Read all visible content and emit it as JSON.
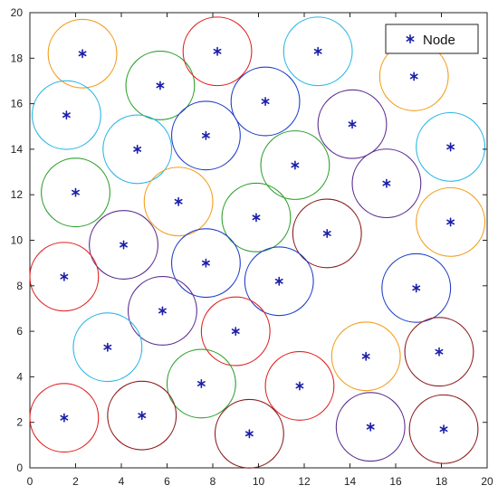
{
  "chart_data": {
    "type": "scatter",
    "title": "",
    "xlabel": "",
    "ylabel": "",
    "xlim": [
      0,
      20
    ],
    "ylim": [
      0,
      20
    ],
    "xticks": [
      "0",
      "2",
      "4",
      "6",
      "8",
      "10",
      "12",
      "14",
      "16",
      "18",
      "20"
    ],
    "yticks": [
      "0",
      "2",
      "4",
      "6",
      "8",
      "10",
      "12",
      "14",
      "16",
      "18",
      "20"
    ],
    "grid": false,
    "legend": {
      "position": "top-right",
      "entries": [
        {
          "label": "Node",
          "marker": "asterisk",
          "color": "#1a1fa8"
        }
      ]
    },
    "marker_color": "#1a1fa8",
    "circle_radius": 1.5,
    "series": [
      {
        "name": "Node",
        "points": [
          {
            "x": 2.3,
            "y": 18.2,
            "circle_color": "#f39c1a"
          },
          {
            "x": 5.7,
            "y": 16.8,
            "circle_color": "#2ca02c"
          },
          {
            "x": 8.2,
            "y": 18.3,
            "circle_color": "#e02020"
          },
          {
            "x": 12.6,
            "y": 18.3,
            "circle_color": "#29b6e6"
          },
          {
            "x": 16.8,
            "y": 17.2,
            "circle_color": "#f39c1a"
          },
          {
            "x": 1.6,
            "y": 15.5,
            "circle_color": "#29b6e6"
          },
          {
            "x": 4.7,
            "y": 14.0,
            "circle_color": "#29b6e6"
          },
          {
            "x": 7.7,
            "y": 14.6,
            "circle_color": "#1f3ec8"
          },
          {
            "x": 10.3,
            "y": 16.1,
            "circle_color": "#1f3ec8"
          },
          {
            "x": 14.1,
            "y": 15.1,
            "circle_color": "#5b2d8e"
          },
          {
            "x": 18.4,
            "y": 14.1,
            "circle_color": "#29b6e6"
          },
          {
            "x": 2.0,
            "y": 12.1,
            "circle_color": "#2ca02c"
          },
          {
            "x": 6.5,
            "y": 11.7,
            "circle_color": "#f39c1a"
          },
          {
            "x": 11.6,
            "y": 13.3,
            "circle_color": "#2ca02c"
          },
          {
            "x": 15.6,
            "y": 12.5,
            "circle_color": "#5b2d8e"
          },
          {
            "x": 9.9,
            "y": 11.0,
            "circle_color": "#2ca02c"
          },
          {
            "x": 4.1,
            "y": 9.8,
            "circle_color": "#5b2d8e"
          },
          {
            "x": 13.0,
            "y": 10.3,
            "circle_color": "#8b1a1a"
          },
          {
            "x": 18.4,
            "y": 10.8,
            "circle_color": "#f39c1a"
          },
          {
            "x": 1.5,
            "y": 8.4,
            "circle_color": "#e02020"
          },
          {
            "x": 7.7,
            "y": 9.0,
            "circle_color": "#1f3ec8"
          },
          {
            "x": 10.9,
            "y": 8.2,
            "circle_color": "#1f3ec8"
          },
          {
            "x": 16.9,
            "y": 7.9,
            "circle_color": "#1f3ec8"
          },
          {
            "x": 5.8,
            "y": 6.9,
            "circle_color": "#5b2d8e"
          },
          {
            "x": 9.0,
            "y": 6.0,
            "circle_color": "#e02020"
          },
          {
            "x": 3.4,
            "y": 5.3,
            "circle_color": "#29b6e6"
          },
          {
            "x": 14.7,
            "y": 4.9,
            "circle_color": "#f39c1a"
          },
          {
            "x": 17.9,
            "y": 5.1,
            "circle_color": "#8b1a1a"
          },
          {
            "x": 7.5,
            "y": 3.7,
            "circle_color": "#2ca02c"
          },
          {
            "x": 11.8,
            "y": 3.6,
            "circle_color": "#e02020"
          },
          {
            "x": 1.5,
            "y": 2.2,
            "circle_color": "#e02020"
          },
          {
            "x": 4.9,
            "y": 2.3,
            "circle_color": "#8b1a1a"
          },
          {
            "x": 9.6,
            "y": 1.5,
            "circle_color": "#8b1a1a"
          },
          {
            "x": 14.9,
            "y": 1.8,
            "circle_color": "#5b2d8e"
          },
          {
            "x": 18.1,
            "y": 1.7,
            "circle_color": "#8b1a1a"
          }
        ]
      }
    ]
  }
}
